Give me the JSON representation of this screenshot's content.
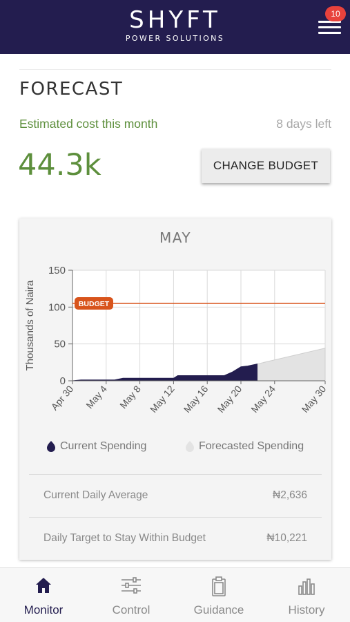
{
  "header": {
    "logo_main": "SHYFT",
    "logo_sub": "POWER SOLUTIONS",
    "notification_count": "10",
    "menu_icon": "hamburger-menu-icon"
  },
  "forecast": {
    "title": "FORECAST",
    "estimated_label": "Estimated cost this month",
    "days_left": "8 days left",
    "cost_value": "44.3k",
    "change_budget_label": "CHANGE BUDGET"
  },
  "card": {
    "month": "MAY",
    "legend": {
      "current": "Current Spending",
      "forecast": "Forecasted Spending"
    },
    "stats": [
      {
        "label": "Current Daily Average",
        "value": "₦2,636"
      },
      {
        "label": "Daily Target to Stay Within Budget",
        "value": "₦10,221"
      }
    ]
  },
  "chart_data": {
    "type": "area",
    "title": "MAY",
    "ylabel": "Thousands of Naira",
    "xlabel": "",
    "ylim": [
      0,
      150
    ],
    "yticks": [
      0,
      50,
      100,
      150
    ],
    "xlim": [
      0,
      30
    ],
    "xticks": [
      {
        "day": 0,
        "label": "Apr 30"
      },
      {
        "day": 4,
        "label": "May 4"
      },
      {
        "day": 8,
        "label": "May 8"
      },
      {
        "day": 12,
        "label": "May 12"
      },
      {
        "day": 16,
        "label": "May 16"
      },
      {
        "day": 20,
        "label": "May 20"
      },
      {
        "day": 24,
        "label": "May 24"
      },
      {
        "day": 30,
        "label": "May 30"
      }
    ],
    "grid": true,
    "budget": {
      "value": 105,
      "label": "BUDGET",
      "color": "#d8541c"
    },
    "series": [
      {
        "name": "Current Spending",
        "color": "#231d4f",
        "x": [
          0,
          1,
          5,
          6,
          12,
          12.5,
          18,
          19,
          20,
          20.8,
          22
        ],
        "values": [
          0,
          1.2,
          1.2,
          3.5,
          3.5,
          7,
          7,
          12,
          19,
          20,
          23
        ]
      },
      {
        "name": "Forecasted Spending",
        "color": "#e3e3e3",
        "x": [
          22,
          30
        ],
        "values": [
          23,
          44.3
        ]
      }
    ],
    "legend_position": "bottom"
  },
  "nav": {
    "items": [
      {
        "label": "Monitor",
        "icon": "home-icon",
        "active": true
      },
      {
        "label": "Control",
        "icon": "sliders-icon",
        "active": false
      },
      {
        "label": "Guidance",
        "icon": "clipboard-icon",
        "active": false
      },
      {
        "label": "History",
        "icon": "bar-chart-icon",
        "active": false
      }
    ]
  }
}
